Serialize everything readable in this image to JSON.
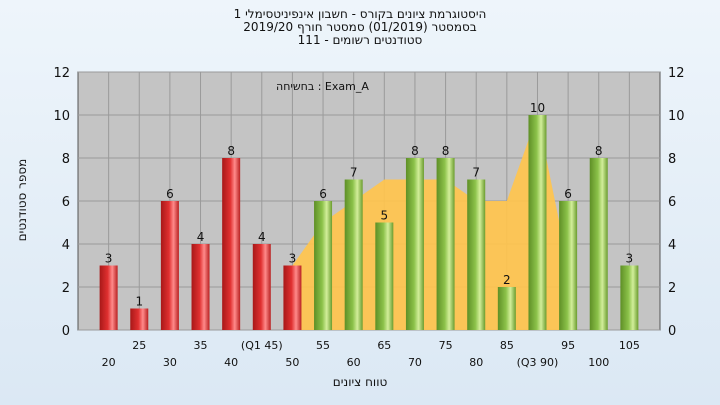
{
  "chart_data": {
    "type": "bar",
    "title_lines": [
      "היסטוגרמת ציונים בקורס - חשבון אינפיניטסימלי 1",
      "בסמסטר  (01/2019)  סמסטר חורף 2019/20",
      "סטודנטים רשומים - 111"
    ],
    "annotation": "בחשיחה : Exam_A",
    "xlabel": "טווח ציונים",
    "ylabel": "מספר סטודנטים",
    "ylim": [
      0,
      12
    ],
    "yticks": [
      0,
      2,
      4,
      6,
      8,
      10,
      12
    ],
    "grid": true,
    "x_ticks_top_row": [
      "25",
      "35",
      "(Q1 45)",
      "55",
      "65",
      "75",
      "85",
      "95",
      "105"
    ],
    "x_ticks_bottom_row": [
      "20",
      "30",
      "40",
      "50",
      "60",
      "70",
      "80",
      "(Q3 90)",
      "100"
    ],
    "categories": [
      "20",
      "25",
      "30",
      "35",
      "40",
      "45",
      "50",
      "55",
      "60",
      "65",
      "70",
      "75",
      "80",
      "85",
      "90",
      "95",
      "100",
      "105"
    ],
    "values": [
      3,
      1,
      6,
      4,
      8,
      4,
      3,
      6,
      7,
      5,
      8,
      8,
      7,
      2,
      10,
      6,
      8,
      3
    ],
    "bar_colors": [
      "red",
      "red",
      "red",
      "red",
      "red",
      "red",
      "red",
      "green",
      "green",
      "green",
      "green",
      "green",
      "green",
      "green",
      "green",
      "green",
      "green",
      "green"
    ],
    "cumulative_area_values": [
      null,
      null,
      null,
      null,
      null,
      null,
      3,
      5,
      6,
      7,
      7,
      7,
      6,
      6,
      10,
      3,
      null,
      null
    ],
    "colors": {
      "red_bar": "#e03030",
      "green_bar": "#8cc24a",
      "area": "#ffc44d",
      "plot_bg": "#c4c4c4",
      "grid": "#9a9a9a"
    }
  }
}
